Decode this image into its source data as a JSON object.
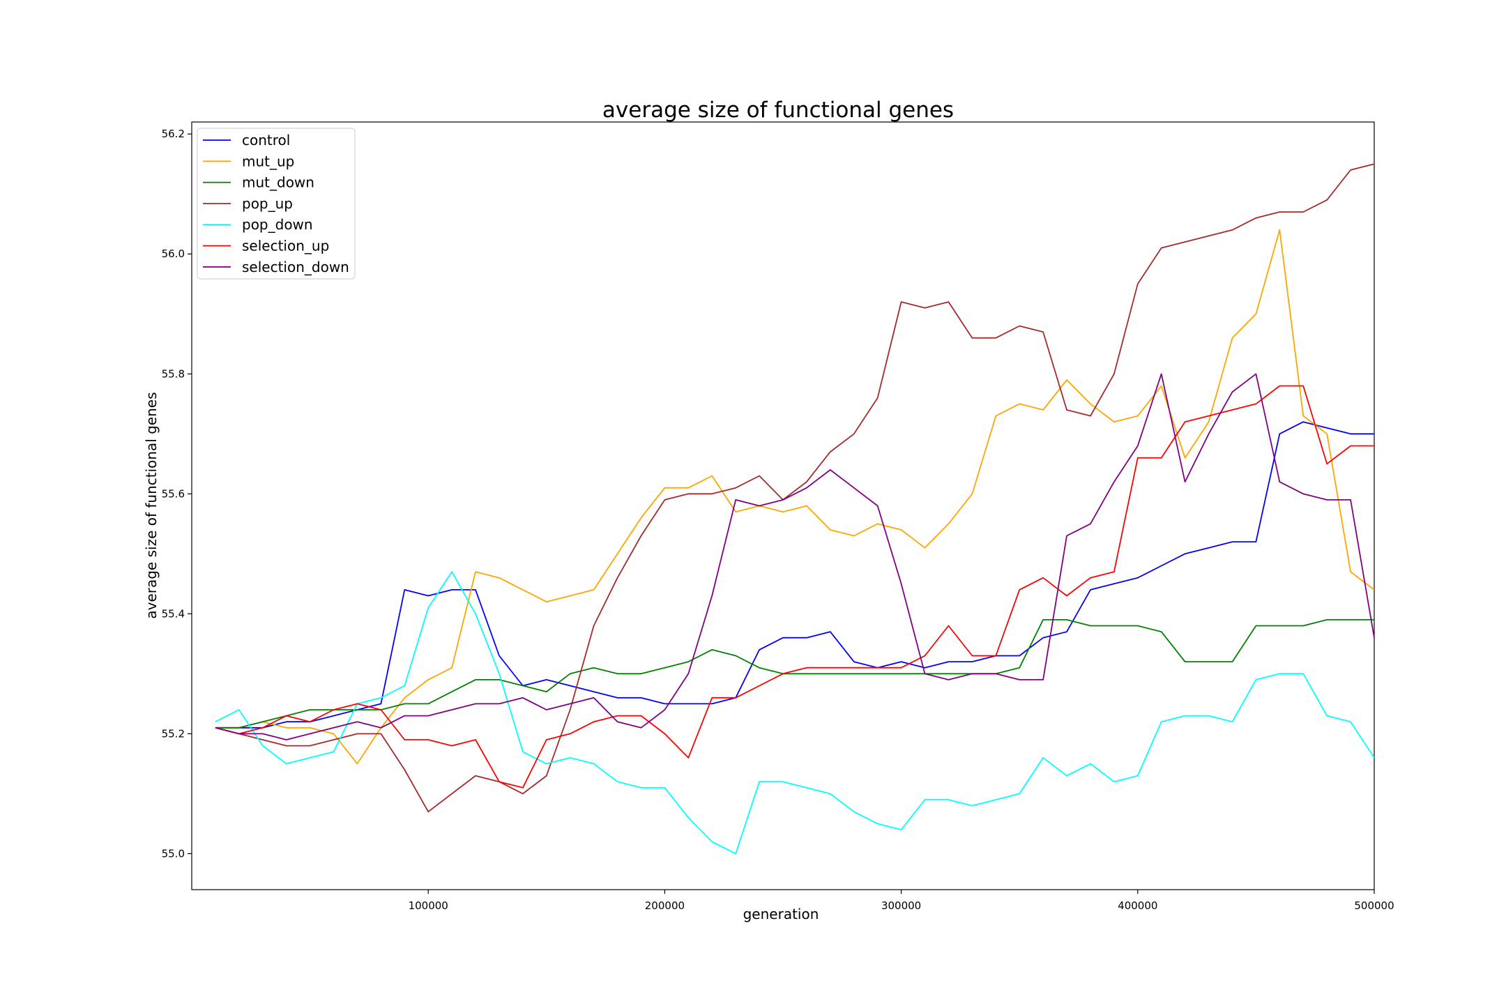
{
  "chart_data": {
    "type": "line",
    "title": "average size of functional genes",
    "xlabel": "generation",
    "ylabel": "average size of functional genes",
    "xlim": [
      0,
      500000
    ],
    "ylim": [
      54.94,
      56.22
    ],
    "xticks": [
      100000,
      200000,
      300000,
      400000,
      500000
    ],
    "xtick_labels": [
      "100000",
      "200000",
      "300000",
      "400000",
      "500000"
    ],
    "yticks": [
      55.0,
      55.2,
      55.4,
      55.6,
      55.8,
      56.0,
      56.2
    ],
    "ytick_labels": [
      "55.0",
      "55.2",
      "55.4",
      "55.6",
      "55.8",
      "56.0",
      "56.2"
    ],
    "grid": false,
    "legend_position": "upper left",
    "x": [
      10000,
      20000,
      30000,
      40000,
      50000,
      60000,
      70000,
      80000,
      90000,
      100000,
      110000,
      120000,
      130000,
      140000,
      150000,
      160000,
      170000,
      180000,
      190000,
      200000,
      210000,
      220000,
      230000,
      240000,
      250000,
      260000,
      270000,
      280000,
      290000,
      300000,
      310000,
      320000,
      330000,
      340000,
      350000,
      360000,
      370000,
      380000,
      390000,
      400000,
      410000,
      420000,
      430000,
      440000,
      450000,
      460000,
      470000,
      480000,
      490000,
      500000
    ],
    "series": [
      {
        "name": "control",
        "color": "#0000ff",
        "values": [
          55.21,
          55.21,
          55.21,
          55.22,
          55.22,
          55.23,
          55.24,
          55.25,
          55.44,
          55.43,
          55.44,
          55.44,
          55.33,
          55.28,
          55.29,
          55.28,
          55.27,
          55.26,
          55.26,
          55.25,
          55.25,
          55.25,
          55.26,
          55.34,
          55.36,
          55.36,
          55.37,
          55.32,
          55.31,
          55.32,
          55.31,
          55.32,
          55.32,
          55.33,
          55.33,
          55.36,
          55.37,
          55.44,
          55.45,
          55.46,
          55.48,
          55.5,
          55.51,
          55.52,
          55.52,
          55.7,
          55.72,
          55.71,
          55.7,
          55.7
        ]
      },
      {
        "name": "mut_up",
        "color": "#ffa500",
        "values": [
          55.21,
          55.21,
          55.22,
          55.21,
          55.21,
          55.2,
          55.15,
          55.21,
          55.26,
          55.29,
          55.31,
          55.47,
          55.46,
          55.44,
          55.42,
          55.43,
          55.44,
          55.5,
          55.56,
          55.61,
          55.61,
          55.63,
          55.57,
          55.58,
          55.57,
          55.58,
          55.54,
          55.53,
          55.55,
          55.54,
          55.51,
          55.55,
          55.6,
          55.73,
          55.75,
          55.74,
          55.79,
          55.75,
          55.72,
          55.73,
          55.78,
          55.66,
          55.72,
          55.86,
          55.9,
          56.04,
          55.73,
          55.7,
          55.47,
          55.44
        ]
      },
      {
        "name": "mut_down",
        "color": "#008000",
        "values": [
          55.21,
          55.21,
          55.22,
          55.23,
          55.24,
          55.24,
          55.24,
          55.24,
          55.25,
          55.25,
          55.27,
          55.29,
          55.29,
          55.28,
          55.27,
          55.3,
          55.31,
          55.3,
          55.3,
          55.31,
          55.32,
          55.34,
          55.33,
          55.31,
          55.3,
          55.3,
          55.3,
          55.3,
          55.3,
          55.3,
          55.3,
          55.3,
          55.3,
          55.3,
          55.31,
          55.39,
          55.39,
          55.38,
          55.38,
          55.38,
          55.37,
          55.32,
          55.32,
          55.32,
          55.38,
          55.38,
          55.38,
          55.39,
          55.39,
          55.39
        ]
      },
      {
        "name": "pop_up",
        "color": "#a52a2a",
        "values": [
          55.21,
          55.2,
          55.19,
          55.18,
          55.18,
          55.19,
          55.2,
          55.2,
          55.14,
          55.07,
          55.1,
          55.13,
          55.12,
          55.1,
          55.13,
          55.24,
          55.38,
          55.46,
          55.53,
          55.59,
          55.6,
          55.6,
          55.61,
          55.63,
          55.59,
          55.62,
          55.67,
          55.7,
          55.76,
          55.92,
          55.91,
          55.92,
          55.86,
          55.86,
          55.88,
          55.87,
          55.74,
          55.73,
          55.8,
          55.95,
          56.01,
          56.02,
          56.03,
          56.04,
          56.06,
          56.07,
          56.07,
          56.09,
          56.14,
          56.15
        ]
      },
      {
        "name": "pop_down",
        "color": "#00ffff",
        "values": [
          55.22,
          55.24,
          55.18,
          55.15,
          55.16,
          55.17,
          55.25,
          55.26,
          55.28,
          55.41,
          55.47,
          55.4,
          55.3,
          55.17,
          55.15,
          55.16,
          55.15,
          55.12,
          55.11,
          55.11,
          55.06,
          55.02,
          55.0,
          55.12,
          55.12,
          55.11,
          55.1,
          55.07,
          55.05,
          55.04,
          55.09,
          55.09,
          55.08,
          55.09,
          55.1,
          55.16,
          55.13,
          55.15,
          55.12,
          55.13,
          55.22,
          55.23,
          55.23,
          55.22,
          55.29,
          55.3,
          55.3,
          55.23,
          55.22,
          55.16
        ]
      },
      {
        "name": "selection_up",
        "color": "#ff0000",
        "values": [
          55.21,
          55.2,
          55.21,
          55.23,
          55.22,
          55.24,
          55.25,
          55.24,
          55.19,
          55.19,
          55.18,
          55.19,
          55.12,
          55.11,
          55.19,
          55.2,
          55.22,
          55.23,
          55.23,
          55.2,
          55.16,
          55.26,
          55.26,
          55.28,
          55.3,
          55.31,
          55.31,
          55.31,
          55.31,
          55.31,
          55.33,
          55.38,
          55.33,
          55.33,
          55.44,
          55.46,
          55.43,
          55.46,
          55.47,
          55.66,
          55.66,
          55.72,
          55.73,
          55.74,
          55.75,
          55.78,
          55.78,
          55.65,
          55.68,
          55.68
        ]
      },
      {
        "name": "selection_down",
        "color": "#800080",
        "values": [
          55.21,
          55.2,
          55.2,
          55.19,
          55.2,
          55.21,
          55.22,
          55.21,
          55.23,
          55.23,
          55.24,
          55.25,
          55.25,
          55.26,
          55.24,
          55.25,
          55.26,
          55.22,
          55.21,
          55.24,
          55.3,
          55.43,
          55.59,
          55.58,
          55.59,
          55.61,
          55.64,
          55.61,
          55.58,
          55.45,
          55.3,
          55.29,
          55.3,
          55.3,
          55.29,
          55.29,
          55.53,
          55.55,
          55.62,
          55.68,
          55.8,
          55.62,
          55.7,
          55.77,
          55.8,
          55.62,
          55.6,
          55.59,
          55.59,
          55.36
        ]
      }
    ]
  }
}
